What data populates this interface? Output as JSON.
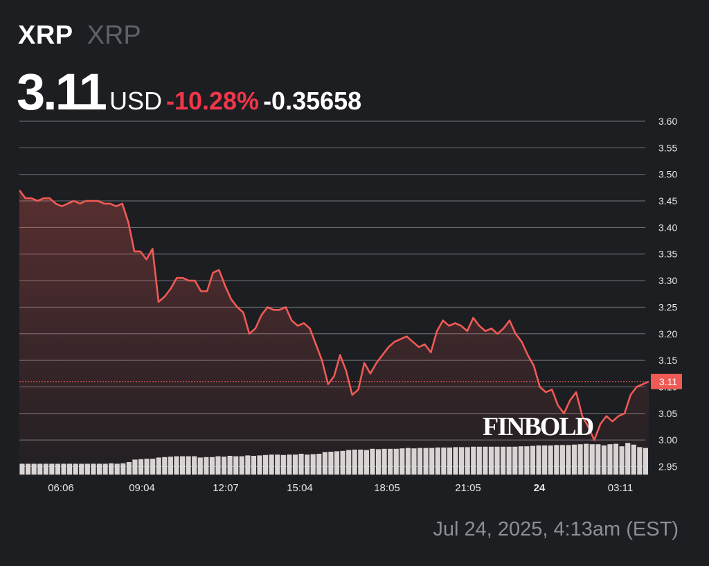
{
  "header": {
    "ticker": "XRP",
    "name": "XRP",
    "price": "3.11",
    "currency": "USD",
    "change_percent": "-10.28%",
    "change_absolute": "-0.35658"
  },
  "watermark": "FINBOLD",
  "timestamp": "Jul 24, 2025, 4:13am (EST)",
  "colors": {
    "background": "#1d1e22",
    "line": "#f05a55",
    "negative": "#f2364a",
    "grid": "#75777c",
    "volume": "#d9d9d9",
    "axis_text": "#e6e6e6"
  },
  "chart_data": {
    "type": "area",
    "title": "",
    "xlabel": "",
    "ylabel": "",
    "ylim": [
      2.935,
      3.6
    ],
    "y_ticks": [
      "3.60",
      "3.55",
      "3.50",
      "3.45",
      "3.40",
      "3.35",
      "3.30",
      "3.25",
      "3.20",
      "3.15",
      "3.10",
      "3.05",
      "3.00",
      "2.95"
    ],
    "x_ticks": [
      {
        "label": "06:06",
        "bold": false
      },
      {
        "label": "09:04",
        "bold": false
      },
      {
        "label": "12:07",
        "bold": false
      },
      {
        "label": "15:04",
        "bold": false
      },
      {
        "label": "18:05",
        "bold": false
      },
      {
        "label": "21:05",
        "bold": false
      },
      {
        "label": "24",
        "bold": true
      },
      {
        "label": "03:11",
        "bold": false
      }
    ],
    "current_price_label": "3.11",
    "current_price": 3.11,
    "grid": true,
    "series": [
      {
        "values": [
          3.47,
          3.455,
          3.455,
          3.45,
          3.455,
          3.455,
          3.445,
          3.44,
          3.445,
          3.45,
          3.445,
          3.45,
          3.45,
          3.45,
          3.445,
          3.445,
          3.44,
          3.445,
          3.41,
          3.355,
          3.355,
          3.34,
          3.36,
          3.26,
          3.27,
          3.285,
          3.305,
          3.305,
          3.3,
          3.3,
          3.28,
          3.28,
          3.315,
          3.32,
          3.29,
          3.265,
          3.25,
          3.24,
          3.2,
          3.21,
          3.235,
          3.25,
          3.245,
          3.245,
          3.25,
          3.225,
          3.215,
          3.22,
          3.21,
          3.18,
          3.15,
          3.105,
          3.12,
          3.16,
          3.13,
          3.085,
          3.095,
          3.145,
          3.125,
          3.145,
          3.16,
          3.175,
          3.185,
          3.19,
          3.195,
          3.185,
          3.175,
          3.18,
          3.165,
          3.205,
          3.225,
          3.215,
          3.22,
          3.215,
          3.205,
          3.23,
          3.215,
          3.205,
          3.21,
          3.2,
          3.21,
          3.225,
          3.2,
          3.185,
          3.16,
          3.14,
          3.1,
          3.09,
          3.095,
          3.065,
          3.05,
          3.075,
          3.09,
          3.045,
          3.025,
          3.0,
          3.03,
          3.045,
          3.035,
          3.045,
          3.05,
          3.085,
          3.1,
          3.105,
          3.11
        ]
      }
    ],
    "volume": [
      0.26,
      0.26,
      0.26,
      0.26,
      0.26,
      0.26,
      0.26,
      0.26,
      0.26,
      0.26,
      0.26,
      0.26,
      0.26,
      0.26,
      0.26,
      0.27,
      0.26,
      0.27,
      0.3,
      0.36,
      0.37,
      0.38,
      0.38,
      0.41,
      0.42,
      0.43,
      0.44,
      0.44,
      0.44,
      0.44,
      0.41,
      0.42,
      0.42,
      0.44,
      0.43,
      0.45,
      0.44,
      0.44,
      0.46,
      0.45,
      0.46,
      0.47,
      0.48,
      0.48,
      0.47,
      0.48,
      0.48,
      0.5,
      0.48,
      0.49,
      0.5,
      0.54,
      0.55,
      0.56,
      0.57,
      0.59,
      0.6,
      0.6,
      0.59,
      0.62,
      0.61,
      0.62,
      0.62,
      0.62,
      0.63,
      0.64,
      0.63,
      0.64,
      0.64,
      0.64,
      0.65,
      0.65,
      0.65,
      0.66,
      0.66,
      0.66,
      0.67,
      0.67,
      0.67,
      0.67,
      0.67,
      0.67,
      0.67,
      0.67,
      0.68,
      0.68,
      0.69,
      0.7,
      0.7,
      0.7,
      0.71,
      0.71,
      0.71,
      0.72,
      0.73,
      0.74,
      0.73,
      0.73,
      0.7,
      0.73,
      0.74,
      0.68,
      0.76,
      0.72,
      0.66,
      0.64
    ]
  }
}
